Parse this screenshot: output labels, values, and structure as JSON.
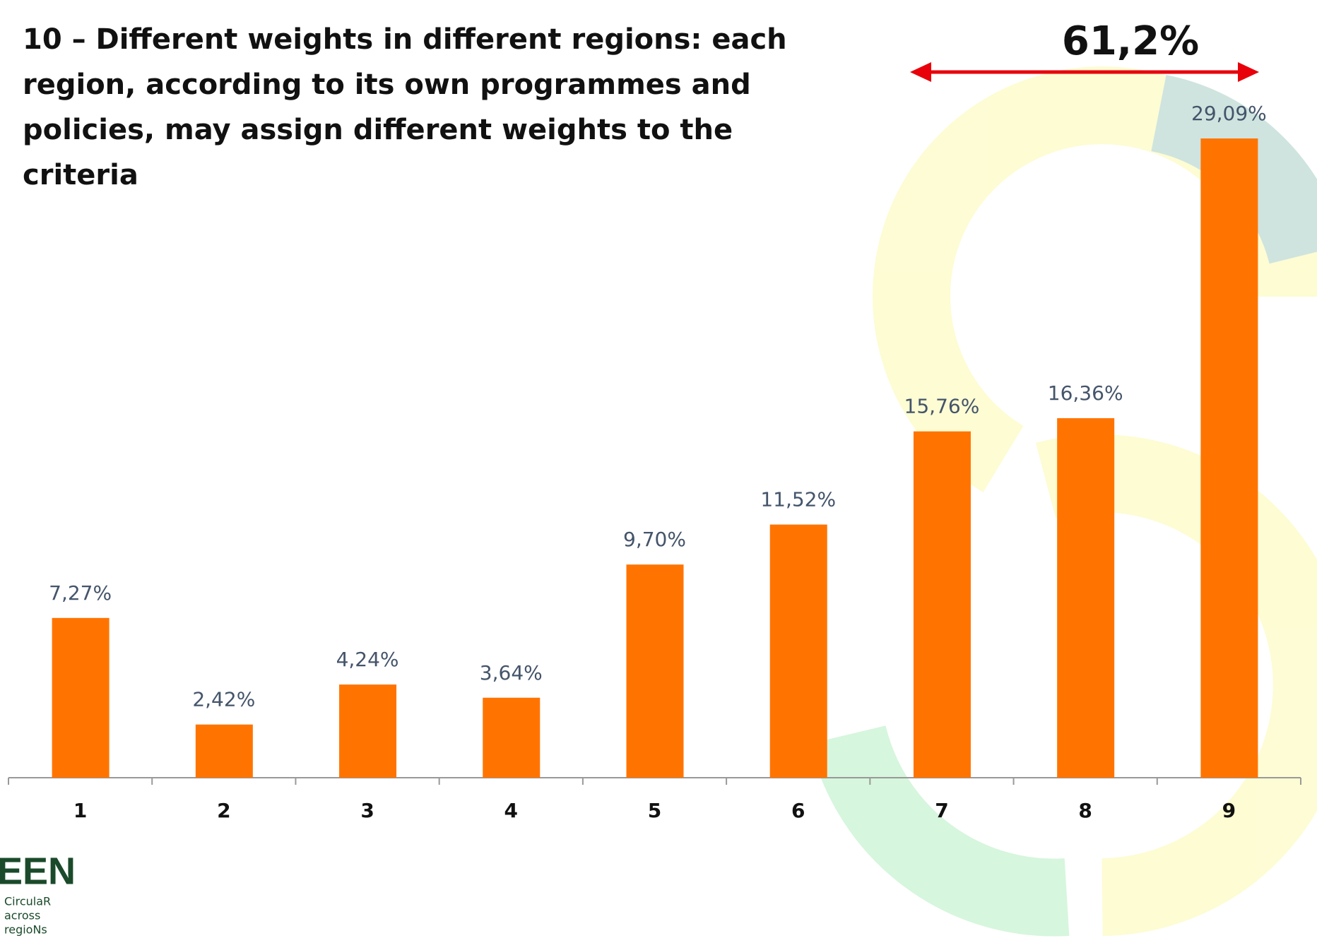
{
  "chart_data": {
    "type": "bar",
    "title": "10 –  Different weights in different regions: each region, according to its own programmes and policies, may assign different weights to the criteria",
    "annotation": "61,2%",
    "categories": [
      "1",
      "2",
      "3",
      "4",
      "5",
      "6",
      "7",
      "8",
      "9"
    ],
    "values": [
      7.27,
      2.42,
      4.24,
      3.64,
      9.7,
      11.52,
      15.76,
      16.36,
      29.09
    ],
    "value_labels": [
      "7,27%",
      "2,42%",
      "4,24%",
      "3,64%",
      "9,70%",
      "11,52%",
      "15,76%",
      "16,36%",
      "29,09%"
    ],
    "color": "#ff7400"
  },
  "logo": {
    "name": "EEN",
    "lines": [
      "CirculaR",
      "across",
      "regioNs"
    ]
  }
}
